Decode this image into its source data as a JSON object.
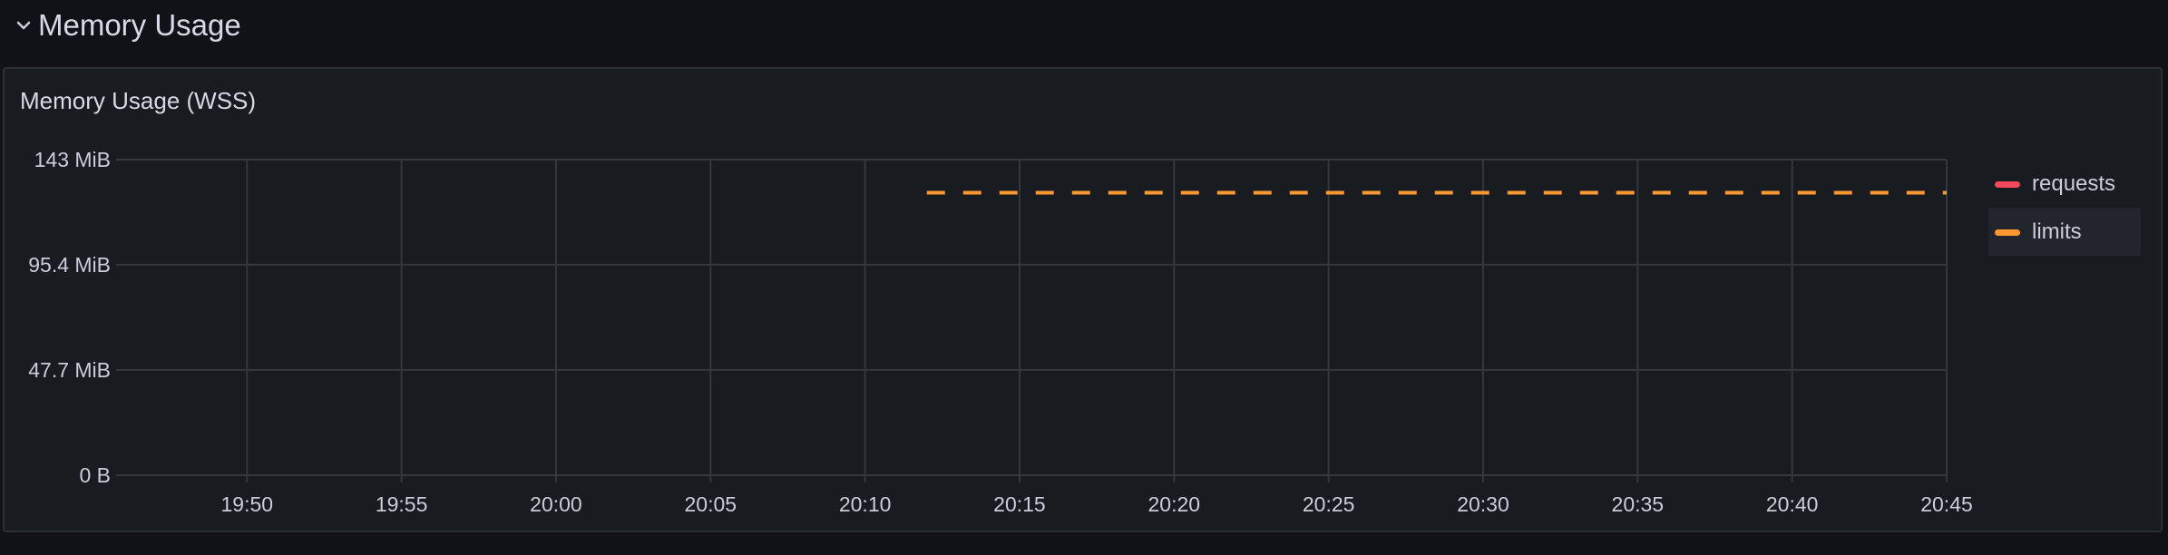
{
  "row": {
    "title": "Memory Usage",
    "chevron_icon": "chevron-down-icon"
  },
  "panel": {
    "title": "Memory Usage (WSS)"
  },
  "colors": {
    "requests": "#f2495c",
    "limits": "#ff9830",
    "grid": "#34373d"
  },
  "chart_data": {
    "type": "line",
    "title": "Memory Usage (WSS)",
    "xlabel": "",
    "ylabel": "",
    "y_ticks": [
      "0 B",
      "47.7 MiB",
      "95.4 MiB",
      "143 MiB"
    ],
    "y_tick_values_mib": [
      0,
      47.7,
      95.4,
      143
    ],
    "ylim_mib": [
      0,
      143
    ],
    "x_ticks": [
      "19:50",
      "19:55",
      "20:00",
      "20:05",
      "20:10",
      "20:15",
      "20:20",
      "20:25",
      "20:30",
      "20:35",
      "20:40",
      "20:45"
    ],
    "x_range": [
      "19:46",
      "20:45"
    ],
    "grid": true,
    "legend_placement": "right",
    "series": [
      {
        "name": "requests",
        "color": "#f2495c",
        "style": "dashed",
        "points": []
      },
      {
        "name": "limits",
        "color": "#ff9830",
        "style": "dashed",
        "points": [
          {
            "x": "20:12",
            "y_mib": 128
          },
          {
            "x": "20:45",
            "y_mib": 128
          }
        ]
      }
    ]
  }
}
